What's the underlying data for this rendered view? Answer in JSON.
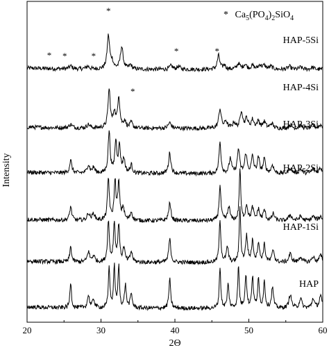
{
  "chart_data": {
    "type": "line",
    "xlabel": "2Θ",
    "ylabel": "Intensity",
    "xlim": [
      20,
      60
    ],
    "x_ticks": [
      20,
      30,
      40,
      50,
      60
    ],
    "legend": {
      "marker": "*",
      "prefix": "Ca",
      "sub1": "5",
      "mid1": "(PO",
      "sub2": "4",
      "mid2": ")",
      "sub3": "2",
      "mid3": "SiO",
      "sub4": "4",
      "placement": "top-right"
    },
    "star_marker": "*",
    "series": [
      {
        "name": "HAP-5Si",
        "baseline": 100,
        "amp": 40,
        "noise": 1.5,
        "peaks": [
          [
            25.9,
            4,
            0.25
          ],
          [
            28.2,
            4,
            0.25
          ],
          [
            31.0,
            48,
            0.2
          ],
          [
            31.5,
            10,
            0.2
          ],
          [
            32.8,
            32,
            0.22
          ],
          [
            34.0,
            6,
            0.2
          ],
          [
            39.5,
            5,
            0.25
          ],
          [
            40.5,
            4,
            0.25
          ],
          [
            45.9,
            20,
            0.2
          ],
          [
            46.7,
            6,
            0.2
          ],
          [
            48.6,
            8,
            0.25
          ],
          [
            49.5,
            7,
            0.25
          ],
          [
            50.5,
            5,
            0.25
          ],
          [
            51.5,
            6,
            0.25
          ],
          [
            52.1,
            5,
            0.25
          ],
          [
            53.0,
            4,
            0.25
          ],
          [
            55.5,
            4,
            0.25
          ],
          [
            57.0,
            3,
            0.25
          ],
          [
            58.6,
            3,
            0.25
          ]
        ],
        "stars": [
          [
            23.0,
            76
          ],
          [
            25.1,
            77
          ],
          [
            29.0,
            77
          ],
          [
            31.0,
            12
          ],
          [
            40.2,
            70
          ],
          [
            45.7,
            70
          ]
        ]
      },
      {
        "name": "HAP-4Si",
        "baseline": 185,
        "amp": 40,
        "noise": 1.5,
        "peaks": [
          [
            25.9,
            5,
            0.25
          ],
          [
            28.3,
            5,
            0.25
          ],
          [
            31.1,
            55,
            0.18
          ],
          [
            31.8,
            22,
            0.18
          ],
          [
            32.4,
            45,
            0.18
          ],
          [
            33.2,
            10,
            0.2
          ],
          [
            34.1,
            8,
            0.2
          ],
          [
            39.3,
            8,
            0.25
          ],
          [
            46.1,
            28,
            0.2
          ],
          [
            46.9,
            10,
            0.2
          ],
          [
            48.0,
            8,
            0.22
          ],
          [
            49.0,
            25,
            0.2
          ],
          [
            49.7,
            14,
            0.2
          ],
          [
            50.5,
            12,
            0.22
          ],
          [
            51.3,
            10,
            0.22
          ],
          [
            52.1,
            9,
            0.22
          ],
          [
            53.1,
            7,
            0.22
          ],
          [
            55.6,
            5,
            0.25
          ],
          [
            57.0,
            4,
            0.25
          ],
          [
            58.7,
            4,
            0.25
          ],
          [
            59.7,
            5,
            0.25
          ]
        ],
        "stars": [
          [
            34.3,
            128
          ]
        ]
      },
      {
        "name": "HAP-3Si",
        "baseline": 250,
        "amp": 40,
        "noise": 1.5,
        "peaks": [
          [
            25.9,
            18,
            0.18
          ],
          [
            28.3,
            12,
            0.2
          ],
          [
            29.0,
            8,
            0.2
          ],
          [
            31.1,
            60,
            0.16
          ],
          [
            32.0,
            45,
            0.16
          ],
          [
            32.5,
            38,
            0.16
          ],
          [
            33.1,
            20,
            0.18
          ],
          [
            34.1,
            12,
            0.18
          ],
          [
            39.3,
            30,
            0.18
          ],
          [
            46.1,
            45,
            0.16
          ],
          [
            47.5,
            22,
            0.18
          ],
          [
            48.6,
            35,
            0.18
          ],
          [
            49.6,
            28,
            0.18
          ],
          [
            50.5,
            24,
            0.18
          ],
          [
            51.3,
            22,
            0.18
          ],
          [
            52.1,
            20,
            0.18
          ],
          [
            53.2,
            12,
            0.2
          ],
          [
            55.6,
            8,
            0.25
          ],
          [
            57.0,
            6,
            0.25
          ],
          [
            58.7,
            6,
            0.25
          ],
          [
            59.7,
            8,
            0.25
          ]
        ],
        "stars": []
      },
      {
        "name": "HAP-2Si",
        "baseline": 318,
        "amp": 40,
        "noise": 1.5,
        "peaks": [
          [
            25.9,
            20,
            0.16
          ],
          [
            28.3,
            10,
            0.2
          ],
          [
            29.0,
            10,
            0.2
          ],
          [
            31.0,
            60,
            0.15
          ],
          [
            31.9,
            55,
            0.15
          ],
          [
            32.4,
            52,
            0.15
          ],
          [
            33.0,
            18,
            0.18
          ],
          [
            34.1,
            12,
            0.18
          ],
          [
            39.3,
            25,
            0.18
          ],
          [
            46.1,
            50,
            0.15
          ],
          [
            47.3,
            20,
            0.18
          ],
          [
            48.8,
            75,
            0.12
          ],
          [
            49.7,
            22,
            0.18
          ],
          [
            50.5,
            18,
            0.18
          ],
          [
            51.3,
            16,
            0.18
          ],
          [
            52.1,
            15,
            0.18
          ],
          [
            53.3,
            10,
            0.2
          ],
          [
            55.6,
            8,
            0.25
          ],
          [
            57.0,
            6,
            0.25
          ],
          [
            58.7,
            6,
            0.25
          ],
          [
            59.7,
            6,
            0.25
          ]
        ],
        "stars": []
      },
      {
        "name": "HAP-1Si",
        "baseline": 378,
        "amp": 40,
        "noise": 1.5,
        "peaks": [
          [
            25.9,
            22,
            0.14
          ],
          [
            28.3,
            15,
            0.18
          ],
          [
            29.0,
            9,
            0.2
          ],
          [
            31.0,
            60,
            0.14
          ],
          [
            31.8,
            56,
            0.14
          ],
          [
            32.4,
            54,
            0.14
          ],
          [
            33.1,
            20,
            0.16
          ],
          [
            34.1,
            15,
            0.18
          ],
          [
            39.3,
            34,
            0.16
          ],
          [
            46.1,
            60,
            0.14
          ],
          [
            47.1,
            22,
            0.16
          ],
          [
            48.8,
            80,
            0.12
          ],
          [
            49.7,
            38,
            0.16
          ],
          [
            50.5,
            30,
            0.16
          ],
          [
            51.3,
            28,
            0.16
          ],
          [
            52.1,
            25,
            0.16
          ],
          [
            53.3,
            18,
            0.18
          ],
          [
            55.6,
            12,
            0.22
          ],
          [
            57.0,
            8,
            0.22
          ],
          [
            58.7,
            8,
            0.22
          ],
          [
            59.7,
            10,
            0.22
          ]
        ],
        "stars": []
      },
      {
        "name": "HAP",
        "baseline": 444,
        "amp": 40,
        "noise": 1.5,
        "peaks": [
          [
            25.9,
            38,
            0.12
          ],
          [
            28.3,
            18,
            0.16
          ],
          [
            29.0,
            12,
            0.18
          ],
          [
            31.1,
            60,
            0.12
          ],
          [
            31.8,
            60,
            0.12
          ],
          [
            32.4,
            60,
            0.12
          ],
          [
            33.3,
            33,
            0.14
          ],
          [
            34.1,
            20,
            0.16
          ],
          [
            39.3,
            42,
            0.14
          ],
          [
            46.1,
            60,
            0.12
          ],
          [
            47.2,
            34,
            0.14
          ],
          [
            48.6,
            60,
            0.12
          ],
          [
            49.6,
            48,
            0.14
          ],
          [
            50.5,
            44,
            0.14
          ],
          [
            51.3,
            40,
            0.14
          ],
          [
            52.1,
            38,
            0.14
          ],
          [
            53.2,
            30,
            0.16
          ],
          [
            55.6,
            20,
            0.2
          ],
          [
            57.0,
            14,
            0.2
          ],
          [
            58.7,
            14,
            0.2
          ],
          [
            59.7,
            18,
            0.2
          ]
        ],
        "stars": []
      }
    ]
  },
  "colors": {
    "line": "#000000",
    "background": "#ffffff"
  }
}
